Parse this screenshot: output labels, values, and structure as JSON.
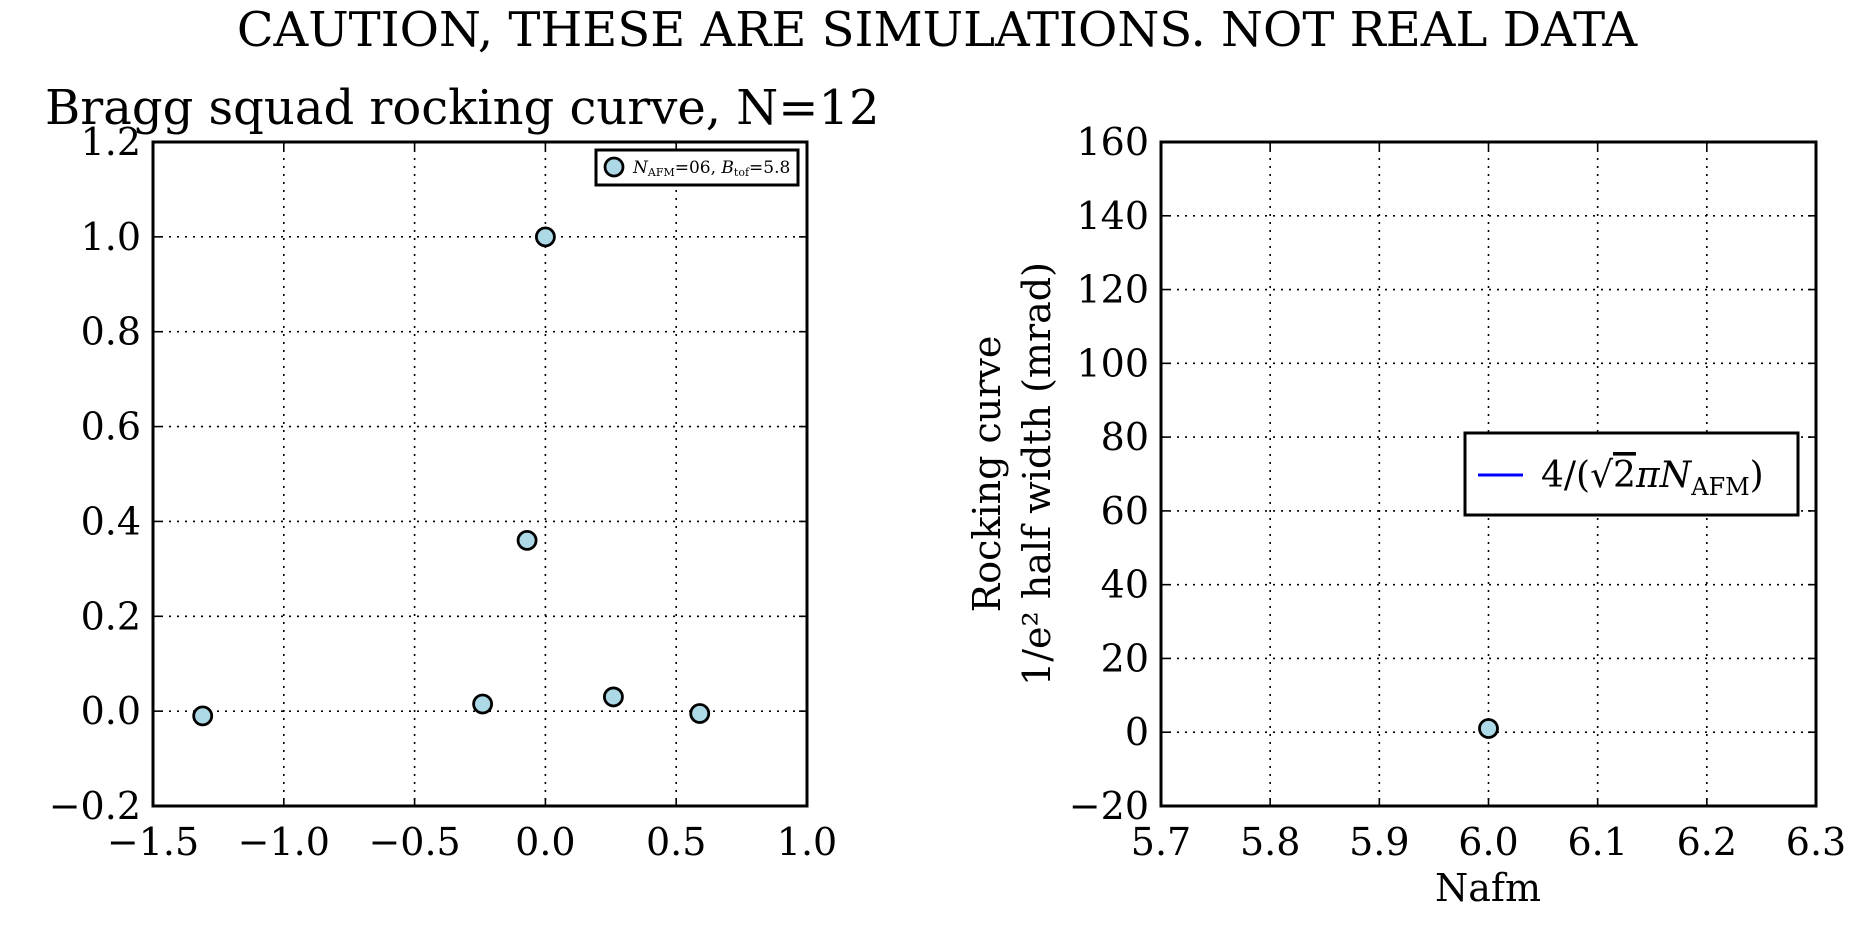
{
  "figure": {
    "suptitle": "CAUTION, THESE ARE SIMULATIONS. NOT REAL DATA"
  },
  "colors": {
    "marker_fill": "#add8e6",
    "marker_edge": "#000000",
    "line": "#0000ff"
  },
  "chart_data": [
    {
      "type": "scatter",
      "title": "Bragg squad rocking curve, N=12",
      "xlabel": "",
      "ylabel": "",
      "xlim": [
        -1.5,
        1.0
      ],
      "ylim": [
        -0.2,
        1.2
      ],
      "xticks": [
        -1.5,
        -1.0,
        -0.5,
        0.0,
        0.5,
        1.0
      ],
      "xtick_labels": [
        "−1.5",
        "−1.0",
        "−0.5",
        "0.0",
        "0.5",
        "1.0"
      ],
      "yticks": [
        -0.2,
        0.0,
        0.2,
        0.4,
        0.6,
        0.8,
        1.0,
        1.2
      ],
      "ytick_labels": [
        "−0.2",
        "0.0",
        "0.2",
        "0.4",
        "0.6",
        "0.8",
        "1.0",
        "1.2"
      ],
      "grid": true,
      "legend_position": "upper right",
      "series": [
        {
          "name": "N_AFM=06, B_tof=5.8",
          "marker": "circle",
          "x": [
            -1.31,
            -0.24,
            -0.07,
            0.0,
            0.26,
            0.59
          ],
          "y": [
            -0.01,
            0.015,
            0.36,
            1.0,
            0.03,
            -0.005
          ]
        }
      ],
      "legend": {
        "label_parts": [
          "N",
          "AFM",
          "=06, ",
          "B",
          "tof",
          "=5.8"
        ]
      }
    },
    {
      "type": "scatter",
      "title": "",
      "xlabel": "Nafm",
      "ylabel_lines": [
        "Rocking curve",
        "1/e² half width (mrad)"
      ],
      "xlim": [
        5.7,
        6.3
      ],
      "ylim": [
        -20,
        160
      ],
      "xticks": [
        5.7,
        5.8,
        5.9,
        6.0,
        6.1,
        6.2,
        6.3
      ],
      "xtick_labels": [
        "5.7",
        "5.8",
        "5.9",
        "6.0",
        "6.1",
        "6.2",
        "6.3"
      ],
      "yticks": [
        -20,
        0,
        20,
        40,
        60,
        80,
        100,
        120,
        140,
        160
      ],
      "ytick_labels": [
        "−20",
        "0",
        "20",
        "40",
        "60",
        "80",
        "100",
        "120",
        "140",
        "160"
      ],
      "grid": true,
      "legend_position": "center right",
      "series": [
        {
          "name": "4/(√2πN_AFM)",
          "marker": "line",
          "x": [],
          "y": []
        },
        {
          "marker": "circle",
          "x": [
            6.0
          ],
          "y": [
            1
          ]
        }
      ],
      "legend": {
        "label_parts": [
          "4/(",
          "√",
          "2",
          "πN",
          "AFM",
          ")"
        ]
      }
    }
  ]
}
